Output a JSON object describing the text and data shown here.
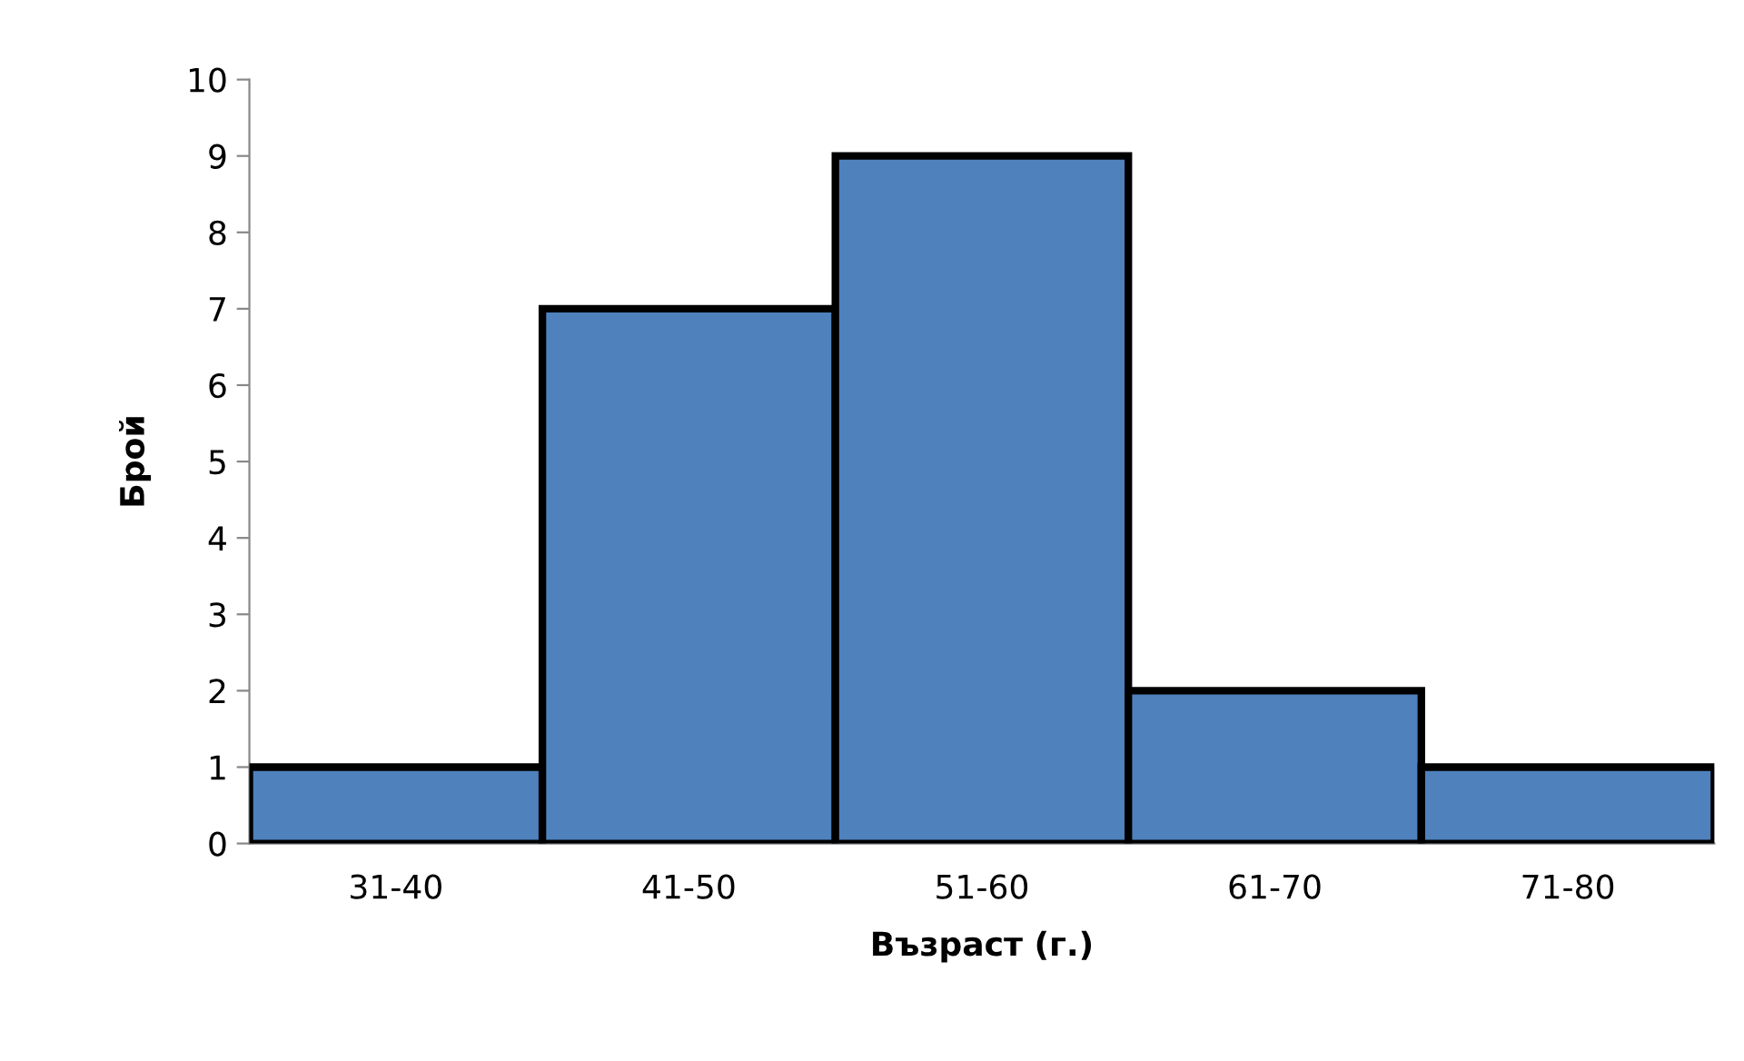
{
  "chart_data": {
    "type": "bar",
    "xlabel": "Възраст (г.)",
    "ylabel": "Брой",
    "categories": [
      "31-40",
      "41-50",
      "51-60",
      "61-70",
      "71-80"
    ],
    "values": [
      1,
      7,
      9,
      2,
      1
    ],
    "color": "#4f81bd",
    "ylim": [
      0,
      10
    ],
    "yticks": [
      0,
      1,
      2,
      3,
      4,
      5,
      6,
      7,
      8,
      9,
      10
    ],
    "grid": false,
    "legend": false
  }
}
